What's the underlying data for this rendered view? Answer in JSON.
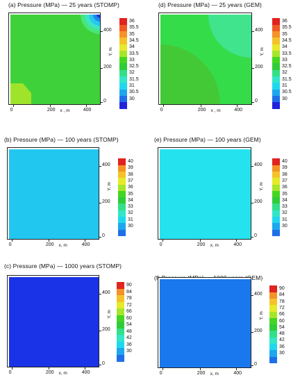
{
  "colormaps": {
    "top": [
      "#2222dd",
      "#1f6fe8",
      "#1ea7ee",
      "#20d8ee",
      "#33e6c8",
      "#33e088",
      "#2fcc3a",
      "#44d622",
      "#a6e62a",
      "#e6ea2a",
      "#f5c22a",
      "#f59228",
      "#f05a25",
      "#e0231f"
    ],
    "mid": [
      "#2222dd",
      "#1f6fe8",
      "#1ea7ee",
      "#20d8ee",
      "#33e6c8",
      "#33e088",
      "#2fcc3a",
      "#44d622",
      "#a6e62a",
      "#e6ea2a",
      "#f5c22a",
      "#f59228",
      "#e0231f"
    ],
    "bot": [
      "#2222dd",
      "#1f6fe8",
      "#1ea7ee",
      "#20d8ee",
      "#33e6c8",
      "#33e088",
      "#2fcc3a",
      "#44d622",
      "#a6e62a",
      "#e6ea2a",
      "#f5c22a",
      "#f59228",
      "#e0231f"
    ]
  },
  "panels": [
    {
      "title": "(a) Pressure (MPa) — 25 years (STOMP)",
      "xlabel": "x , m",
      "ylabel": "Y, m",
      "xticks": [
        "0",
        "200",
        "400"
      ],
      "yticks": [
        "400",
        "200",
        "0"
      ],
      "colorbar": [
        "36",
        "35.5",
        "35",
        "34.5",
        "34",
        "33.5",
        "33",
        "32.5",
        "32",
        "31.5",
        "31",
        "30.5",
        "30"
      ]
    },
    {
      "title": "(d) Pressure (MPa) — 25 years (GEM)",
      "xlabel": "x , m",
      "ylabel": "Y, m",
      "xticks": [
        "0",
        "200",
        "400"
      ],
      "yticks": [
        "400",
        "200",
        "0"
      ],
      "colorbar": [
        "36",
        "35.5",
        "35",
        "34.5",
        "34",
        "33.5",
        "33",
        "32.5",
        "32",
        "31.5",
        "31",
        "30.5",
        "30"
      ]
    },
    {
      "title": "(b) Pressure (MPa) — 100 years (STOMP)",
      "xlabel": "x, m",
      "ylabel": "Y, m",
      "xticks": [
        "0",
        "200",
        "400"
      ],
      "yticks": [
        "400",
        "200",
        "0"
      ],
      "colorbar": [
        "40",
        "39",
        "38",
        "37",
        "36",
        "35",
        "34",
        "33",
        "32",
        "31",
        "30"
      ]
    },
    {
      "title": "(e) Pressure (MPa) — 100 years (GEM)",
      "xlabel": "x, m",
      "ylabel": "Y, m",
      "xticks": [
        "0",
        "200",
        "400"
      ],
      "yticks": [
        "400",
        "200",
        "0"
      ],
      "colorbar": [
        "40",
        "39",
        "38",
        "37",
        "36",
        "35",
        "34",
        "33",
        "32",
        "31",
        "30"
      ]
    },
    {
      "title": "(c) Pressure (MPa) — 1000 years (STOMP)",
      "xlabel": "x, m",
      "ylabel": "Y, m",
      "xticks": [
        "0",
        "200",
        "400"
      ],
      "yticks": [
        "400",
        "200",
        "0"
      ],
      "colorbar": [
        "90",
        "84",
        "78",
        "72",
        "66",
        "60",
        "54",
        "48",
        "42",
        "36",
        "30"
      ]
    },
    {
      "title": "(f) Pressure (MPa) — 1000 years (GEM)",
      "xlabel": "x, m",
      "ylabel": "Y, m",
      "xticks": [
        "0",
        "200",
        "400"
      ],
      "yticks": [
        "400",
        "200",
        "0"
      ],
      "colorbar": [
        "90",
        "84",
        "78",
        "72",
        "66",
        "60",
        "54",
        "48",
        "42",
        "36",
        "30"
      ]
    }
  ],
  "chart_data": [
    {
      "type": "heatmap",
      "title": "(a) Pressure (MPa) — 25 years (STOMP)",
      "xlabel": "x , m",
      "ylabel": "Y, m",
      "xlim": [
        0,
        500
      ],
      "ylim": [
        0,
        500
      ],
      "colorbar_range": [
        30,
        36
      ],
      "description_values": {
        "background": 33.5,
        "top_right_corner": 30.5,
        "bottom_left_corner": 34.5
      }
    },
    {
      "type": "heatmap",
      "title": "(d) Pressure (MPa) — 25 years (GEM)",
      "xlabel": "x , m",
      "ylabel": "Y, m",
      "xlim": [
        0,
        500
      ],
      "ylim": [
        0,
        500
      ],
      "colorbar_range": [
        30,
        36
      ],
      "description_values": {
        "background": 33.5,
        "top_right_region": 32.5,
        "bottom_left_region": 33.5
      }
    },
    {
      "type": "heatmap",
      "title": "(b) Pressure (MPa) — 100 years (STOMP)",
      "xlabel": "x, m",
      "ylabel": "Y, m",
      "xlim": [
        0,
        500
      ],
      "ylim": [
        0,
        500
      ],
      "colorbar_range": [
        30,
        40
      ],
      "description_values": {
        "uniform": 32.5
      }
    },
    {
      "type": "heatmap",
      "title": "(e) Pressure (MPa) — 100 years (GEM)",
      "xlabel": "x, m",
      "ylabel": "Y, m",
      "xlim": [
        0,
        500
      ],
      "ylim": [
        0,
        500
      ],
      "colorbar_range": [
        30,
        40
      ],
      "description_values": {
        "uniform": 33.5
      }
    },
    {
      "type": "heatmap",
      "title": "(c) Pressure (MPa) — 1000 years (STOMP)",
      "xlabel": "x, m",
      "ylabel": "Y, m",
      "xlim": [
        0,
        500
      ],
      "ylim": [
        0,
        500
      ],
      "colorbar_range": [
        30,
        90
      ],
      "description_values": {
        "uniform": 30
      }
    },
    {
      "type": "heatmap",
      "title": "(f) Pressure (MPa) — 1000 years (GEM)",
      "xlabel": "x, m",
      "ylabel": "Y, m",
      "xlim": [
        0,
        500
      ],
      "ylim": [
        0,
        500
      ],
      "colorbar_range": [
        30,
        90
      ],
      "description_values": {
        "uniform": 33
      }
    }
  ]
}
